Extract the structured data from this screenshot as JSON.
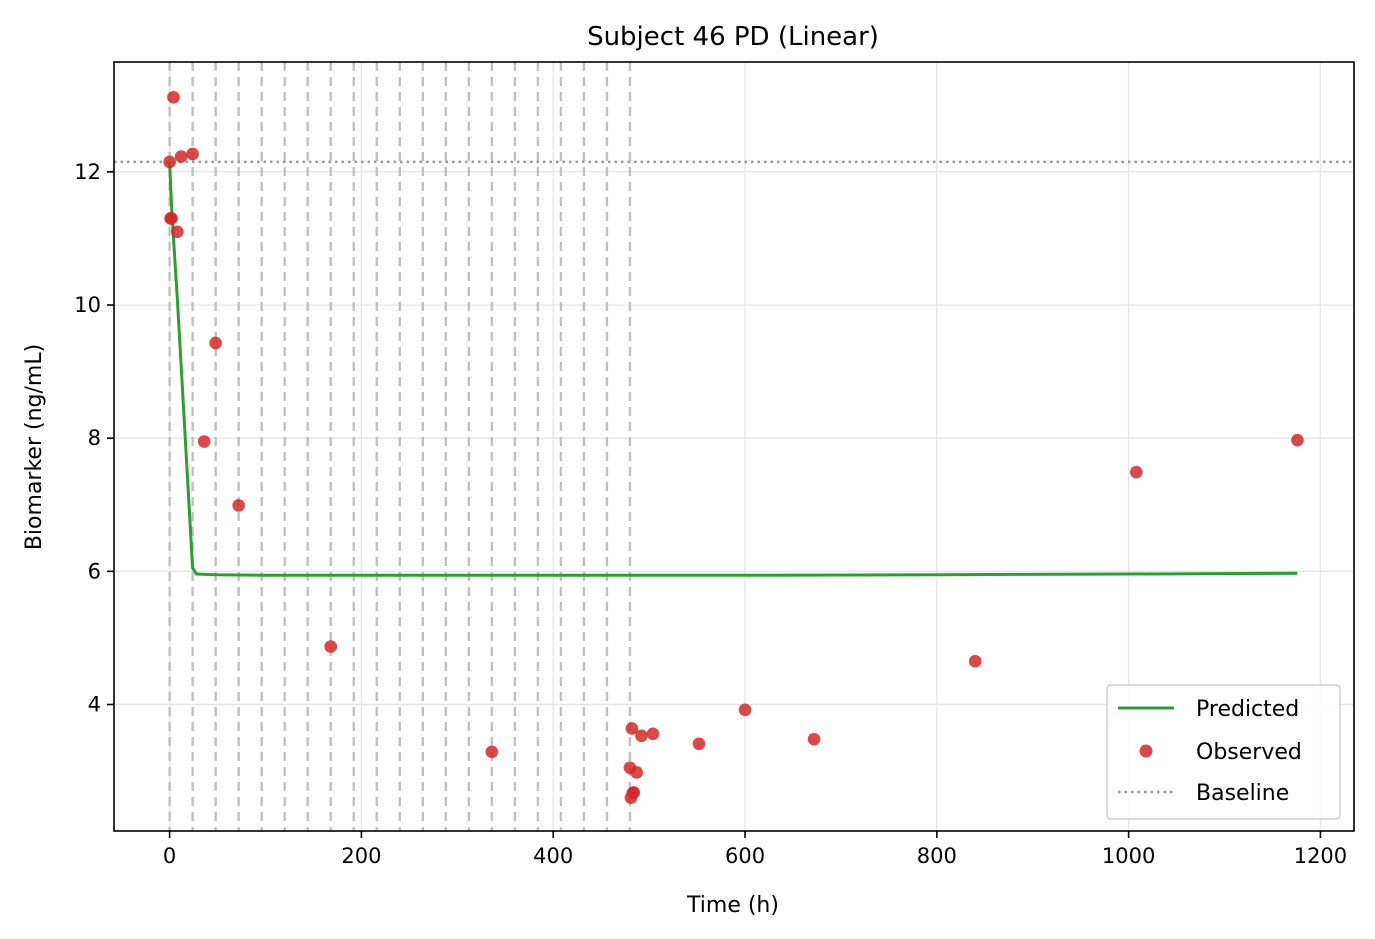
{
  "chart_data": {
    "type": "line",
    "title": "Subject 46 PD (Linear)",
    "xlabel": "Time (h)",
    "ylabel": "Biomarker (ng/mL)",
    "xlim": [
      -58,
      1235
    ],
    "ylim": [
      2.1,
      13.65
    ],
    "x_ticks": [
      0,
      200,
      400,
      600,
      800,
      1000,
      1200
    ],
    "y_ticks": [
      4,
      6,
      8,
      10,
      12
    ],
    "grid": true,
    "legend_position": "lower-right",
    "colors": {
      "predicted": "#2ca02c",
      "observed": "#d62728",
      "baseline": "#999999",
      "dose_lines": "#c0c0c0",
      "grid": "#e6e6e6"
    },
    "dose_times": [
      0,
      24,
      48,
      72,
      96,
      120,
      144,
      168,
      192,
      216,
      240,
      264,
      288,
      312,
      336,
      360,
      384,
      408,
      432,
      456,
      480
    ],
    "baseline": 12.15,
    "series": [
      {
        "name": "Predicted",
        "kind": "line",
        "x": [
          0,
          2,
          4,
          8,
          12,
          24,
          28,
          48,
          100,
          200,
          400,
          600,
          800,
          1000,
          1176
        ],
        "y": [
          12.15,
          11.5,
          11.0,
          10.1,
          9.1,
          6.05,
          5.96,
          5.95,
          5.94,
          5.94,
          5.94,
          5.94,
          5.95,
          5.96,
          5.97
        ]
      },
      {
        "name": "Observed",
        "kind": "scatter",
        "x": [
          0,
          1,
          2,
          4,
          8,
          12,
          24,
          36,
          48,
          72,
          168,
          336,
          480,
          481,
          482,
          483,
          484,
          487,
          492,
          504,
          552,
          600,
          672,
          840,
          1008,
          1176
        ],
        "y": [
          12.15,
          11.3,
          11.3,
          13.12,
          11.1,
          12.23,
          12.27,
          7.95,
          9.43,
          6.99,
          4.87,
          3.29,
          3.05,
          2.6,
          3.64,
          2.67,
          2.68,
          2.98,
          3.53,
          3.56,
          3.41,
          3.92,
          3.48,
          4.65,
          7.49,
          7.97
        ]
      },
      {
        "name": "Baseline",
        "kind": "hline",
        "y": 12.15
      }
    ]
  }
}
